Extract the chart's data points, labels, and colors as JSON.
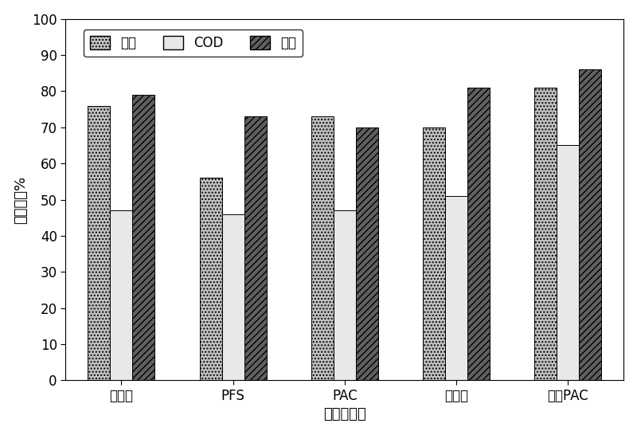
{
  "categories": [
    "硫酸铝",
    "PFS",
    "PAC",
    "高分子",
    "改性PAC"
  ],
  "series": {
    "浊度": [
      76,
      56,
      73,
      70,
      81
    ],
    "COD": [
      47,
      46,
      47,
      51,
      65
    ],
    "总磷": [
      79,
      73,
      70,
      81,
      86
    ]
  },
  "ylabel": "去除率，%",
  "xlabel": "絮凝剤种类",
  "ylim": [
    0,
    100
  ],
  "yticks": [
    0,
    10,
    20,
    30,
    40,
    50,
    60,
    70,
    80,
    90,
    100
  ],
  "legend_labels": [
    "浊度",
    "COD",
    "总磷"
  ],
  "bar_width": 0.2,
  "background_color": "#ffffff",
  "font_size": 12,
  "label_font_size": 13,
  "tick_font_size": 12,
  "hatches": [
    "....",
    "",
    "////"
  ],
  "facecolors": [
    "#c0c0c0",
    "#e8e8e8",
    "#606060"
  ],
  "edgecolors": [
    "#000000",
    "#000000",
    "#000000"
  ]
}
